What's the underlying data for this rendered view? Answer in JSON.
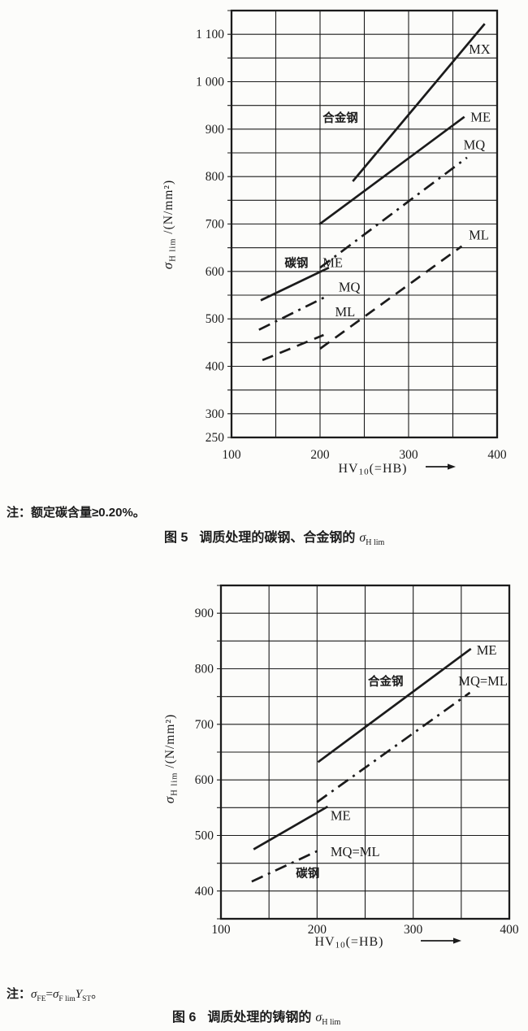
{
  "colors": {
    "ink": "#1b1b1b",
    "paper": "#fcfcfa"
  },
  "figure5": {
    "note": {
      "label": "注：",
      "text": "额定碳含量≥0.20%。"
    },
    "caption": {
      "number": "图 5",
      "text": "调质处理的碳钢、合金钢的",
      "symbol": "σ",
      "subscript": "H lim"
    }
  },
  "figure6": {
    "note": {
      "label": "注：",
      "formula": {
        "sigma1": "σ",
        "sub1": "FE",
        "equals": "=",
        "sigma2": "σ",
        "sub2": "F lim",
        "Y": "Y",
        "sub3": "ST",
        "end": "。"
      }
    },
    "caption": {
      "number": "图 6",
      "text": "调质处理的铸钢的",
      "symbol": "σ",
      "subscript": "H lim"
    }
  },
  "chart_data": [
    {
      "type": "line",
      "figure": "图 5",
      "title": "调质处理的碳钢、合金钢的 σH lim",
      "xlabel": {
        "pre": "HV",
        "sub": "10",
        "post": "(=HB)"
      },
      "ylabel": {
        "symbol": "σ",
        "subscript": "H lim",
        "unit": " /(N/mm²)"
      },
      "xlim": [
        100,
        400
      ],
      "ylim": [
        250,
        1150
      ],
      "grid": "on",
      "grid_step": 50,
      "x_ticks": [
        {
          "value": 100,
          "label": "100"
        },
        {
          "value": 200,
          "label": "200"
        },
        {
          "value": 300,
          "label": "300"
        },
        {
          "value": 400,
          "label": "400"
        }
      ],
      "y_ticks": [
        {
          "value": 250,
          "label": "250"
        },
        {
          "value": 300,
          "label": "300"
        },
        {
          "value": 400,
          "label": "400"
        },
        {
          "value": 500,
          "label": "500"
        },
        {
          "value": 600,
          "label": "600"
        },
        {
          "value": 700,
          "label": "700"
        },
        {
          "value": 800,
          "label": "800"
        },
        {
          "value": 900,
          "label": "900"
        },
        {
          "value": 1000,
          "label": "1 000"
        },
        {
          "value": 1100,
          "label": "1 100"
        }
      ],
      "series": [
        {
          "name": "alloy-steel-MX",
          "group": "合金钢",
          "grade": "MX",
          "style": "solid",
          "points": [
            [
              237,
              790
            ],
            [
              386,
              1122
            ]
          ]
        },
        {
          "name": "alloy-steel-ME",
          "group": "合金钢",
          "grade": "ME",
          "style": "solid",
          "points": [
            [
              199,
              699
            ],
            [
              363,
              926
            ]
          ]
        },
        {
          "name": "alloy-steel-MQ",
          "group": "合金钢",
          "grade": "MQ",
          "style": "dashdot",
          "points": [
            [
              200,
              608
            ],
            [
              366,
              840
            ]
          ]
        },
        {
          "name": "alloy-steel-ML",
          "group": "合金钢",
          "grade": "ML",
          "style": "dashed",
          "points": [
            [
              200,
              437
            ],
            [
              360,
              653
            ]
          ]
        },
        {
          "name": "carbon-steel-ME",
          "group": "碳钢",
          "grade": "ME",
          "style": "solid",
          "points": [
            [
              133,
              539
            ],
            [
              210,
              608
            ]
          ]
        },
        {
          "name": "carbon-steel-MQ",
          "group": "碳钢",
          "grade": "MQ",
          "style": "dashdot",
          "points": [
            [
              131,
              477
            ],
            [
              210,
              550
            ]
          ]
        },
        {
          "name": "carbon-steel-ML",
          "group": "碳钢",
          "grade": "ML",
          "style": "dashed",
          "points": [
            [
              135,
              413
            ],
            [
              204,
              466
            ]
          ]
        }
      ],
      "annotations": [
        {
          "text": "MX",
          "x": 368,
          "y": 1068,
          "bold": false
        },
        {
          "text": "ME",
          "x": 370,
          "y": 925,
          "bold": false
        },
        {
          "text": "MQ",
          "x": 362,
          "y": 866,
          "bold": false
        },
        {
          "text": "ML",
          "x": 368,
          "y": 676,
          "bold": false
        },
        {
          "text": "合金钢",
          "x": 203,
          "y": 924,
          "bold": true
        },
        {
          "text": "碳钢",
          "x": 160,
          "y": 618,
          "bold": true
        },
        {
          "text": "ME",
          "x": 203,
          "y": 618,
          "bold": false
        },
        {
          "text": "MQ",
          "x": 221,
          "y": 566,
          "bold": false
        },
        {
          "text": "ML",
          "x": 217,
          "y": 514,
          "bold": false
        }
      ]
    },
    {
      "type": "line",
      "figure": "图 6",
      "title": "调质处理的铸钢的 σH lim",
      "xlabel": {
        "pre": "HV",
        "sub": "10",
        "post": "(=HB)"
      },
      "ylabel": {
        "symbol": "σ",
        "subscript": "H lim",
        "unit": " /(N/mm²)"
      },
      "xlim": [
        100,
        400
      ],
      "ylim": [
        350,
        950
      ],
      "grid": "on",
      "grid_step": 50,
      "x_ticks": [
        {
          "value": 100,
          "label": "100"
        },
        {
          "value": 200,
          "label": "200"
        },
        {
          "value": 300,
          "label": "300"
        },
        {
          "value": 400,
          "label": "400"
        }
      ],
      "y_ticks": [
        {
          "value": 400,
          "label": "400"
        },
        {
          "value": 500,
          "label": "500"
        },
        {
          "value": 600,
          "label": "600"
        },
        {
          "value": 700,
          "label": "700"
        },
        {
          "value": 800,
          "label": "800"
        },
        {
          "value": 900,
          "label": "900"
        }
      ],
      "series": [
        {
          "name": "alloy-cast-steel-ME",
          "group": "合金钢",
          "grade": "ME",
          "style": "solid",
          "points": [
            [
              201,
              632
            ],
            [
              360,
              836
            ]
          ]
        },
        {
          "name": "alloy-cast-steel-MQ-ML",
          "group": "合金钢",
          "grade": "MQ=ML",
          "style": "dashdot",
          "points": [
            [
              200,
              560
            ],
            [
              359,
              757
            ]
          ]
        },
        {
          "name": "carbon-cast-steel-ME",
          "group": "碳钢",
          "grade": "ME",
          "style": "solid",
          "points": [
            [
              134,
              475
            ],
            [
              211,
              552
            ]
          ]
        },
        {
          "name": "carbon-cast-steel-MQ-ML",
          "group": "碳钢",
          "grade": "MQ=ML",
          "style": "dashdot",
          "points": [
            [
              132,
              417
            ],
            [
              204,
              475
            ]
          ]
        }
      ],
      "annotations": [
        {
          "text": "ME",
          "x": 366,
          "y": 833,
          "bold": false
        },
        {
          "text": "MQ=ML",
          "x": 347,
          "y": 777,
          "bold": false
        },
        {
          "text": "合金钢",
          "x": 253,
          "y": 777,
          "bold": true
        },
        {
          "text": "ME",
          "x": 214,
          "y": 535,
          "bold": false
        },
        {
          "text": "MQ=ML",
          "x": 214,
          "y": 470,
          "bold": false
        },
        {
          "text": "碳钢",
          "x": 178,
          "y": 432,
          "bold": true
        }
      ]
    }
  ]
}
